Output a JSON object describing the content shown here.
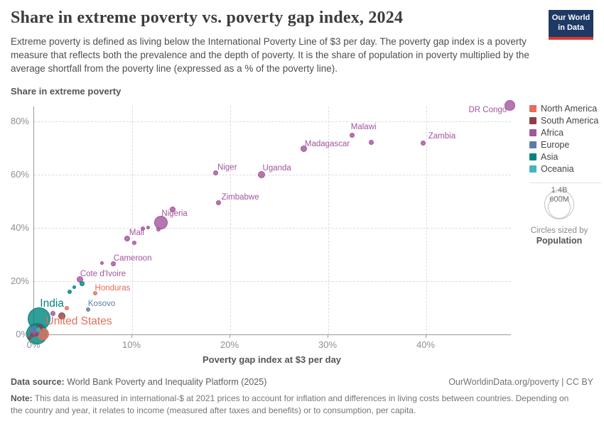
{
  "header": {
    "title": "Share in extreme poverty vs. poverty gap index, 2024",
    "subtitle": "Extreme poverty is defined as living below the International Poverty Line of $3 per day. The poverty gap index is a poverty measure that reflects both the prevalence and the depth of poverty. It is the share of population in poverty multiplied by the average shortfall from the poverty line (expressed as a % of the poverty line)."
  },
  "logo": {
    "line1": "Our World",
    "line2": "in Data",
    "bg_color": "#1d3964",
    "bar_color": "#e0362d"
  },
  "colors": {
    "north_america": "#e56e5a",
    "south_america": "#8f3e47",
    "africa": "#a2559c",
    "europe": "#5b7cab",
    "asia": "#00847e",
    "oceania": "#44b3c2"
  },
  "chart_data": {
    "type": "scatter",
    "title": "Share in extreme poverty vs. poverty gap index, 2024",
    "xlabel": "Poverty gap index at $3 per day",
    "ylabel": "Share in extreme poverty",
    "xlim": [
      0,
      48.6
    ],
    "ylim": [
      0,
      86
    ],
    "grid": true,
    "legend_position": "right",
    "sized_by": "Population",
    "x_ticks": [
      {
        "v": 0,
        "label": "0%"
      },
      {
        "v": 10,
        "label": "10%"
      },
      {
        "v": 20,
        "label": "20%"
      },
      {
        "v": 30,
        "label": "30%"
      },
      {
        "v": 40,
        "label": "40%"
      }
    ],
    "y_ticks": [
      {
        "v": 0,
        "label": "0%"
      },
      {
        "v": 20,
        "label": "20%"
      },
      {
        "v": 40,
        "label": "40%"
      },
      {
        "v": 60,
        "label": "60%"
      },
      {
        "v": 80,
        "label": "80%"
      }
    ],
    "series": [
      {
        "name": "North America",
        "key": "north_america",
        "points": [
          {
            "x": 6.2,
            "y": 15.5,
            "r": 3,
            "label": "Honduras"
          },
          {
            "x": 3.3,
            "y": 9.8,
            "r": 3
          },
          {
            "x": 0.9,
            "y": 0.2,
            "r": 8.5,
            "label": "United States"
          }
        ]
      },
      {
        "name": "South America",
        "key": "south_america",
        "points": [
          {
            "x": 2.8,
            "y": 7.0,
            "r": 5
          },
          {
            "x": 0.6,
            "y": 2.6,
            "r": 4
          },
          {
            "x": 0.2,
            "y": 0.0,
            "r": 3
          },
          {
            "x": -0.2,
            "y": -0.3,
            "r": 3
          },
          {
            "x": -0.5,
            "y": -1.5,
            "r": 2.5
          }
        ]
      },
      {
        "name": "Africa",
        "key": "africa",
        "points": [
          {
            "x": 48.5,
            "y": 85.9,
            "r": 7.5,
            "label": "DR Congo"
          },
          {
            "x": 32.4,
            "y": 74.7,
            "r": 3.5,
            "label": "Malawi"
          },
          {
            "x": 34.4,
            "y": 72.1,
            "r": 3.5
          },
          {
            "x": 39.7,
            "y": 72.0,
            "r": 3.5,
            "label": "Zambia"
          },
          {
            "x": 27.5,
            "y": 69.8,
            "r": 4.5,
            "label": "Madagascar"
          },
          {
            "x": 23.2,
            "y": 60.1,
            "r": 5,
            "label": "Uganda"
          },
          {
            "x": 18.5,
            "y": 60.6,
            "r": 3.5,
            "label": "Niger"
          },
          {
            "x": 18.8,
            "y": 49.4,
            "r": 3.5,
            "label": "Zimbabwe"
          },
          {
            "x": 14.1,
            "y": 46.9,
            "r": 4
          },
          {
            "x": 12.9,
            "y": 42.0,
            "r": 9.5,
            "label": "Nigeria"
          },
          {
            "x": 12.7,
            "y": 39.4,
            "r": 3
          },
          {
            "x": 11.1,
            "y": 39.7,
            "r": 3
          },
          {
            "x": 11.6,
            "y": 40.2,
            "r": 2.5
          },
          {
            "x": 10.2,
            "y": 34.5,
            "r": 3
          },
          {
            "x": 9.5,
            "y": 36.1,
            "r": 4,
            "label": "Mali"
          },
          {
            "x": 8.1,
            "y": 26.5,
            "r": 3.5,
            "label": "Cameroon"
          },
          {
            "x": 6.9,
            "y": 26.9,
            "r": 2.5
          },
          {
            "x": 4.7,
            "y": 20.7,
            "r": 4.5,
            "label": "Cote d'Ivoire"
          },
          {
            "x": 1.9,
            "y": 8.0,
            "r": 3.5
          },
          {
            "x": 0.0,
            "y": 0.3,
            "r": 2.5
          }
        ]
      },
      {
        "name": "Europe",
        "key": "europe",
        "points": [
          {
            "x": 5.5,
            "y": 9.4,
            "r": 3,
            "label": "Kosovo"
          },
          {
            "x": 0.05,
            "y": 1.2,
            "r": 7.5
          }
        ]
      },
      {
        "name": "Asia",
        "key": "asia",
        "points": [
          {
            "x": 4.9,
            "y": 19.2,
            "r": 3.5
          },
          {
            "x": 4.1,
            "y": 17.8,
            "r": 2.5
          },
          {
            "x": 3.6,
            "y": 16.0,
            "r": 3
          },
          {
            "x": 0.5,
            "y": 6.0,
            "r": 16,
            "label": "India"
          },
          {
            "x": 0.3,
            "y": 0.3,
            "r": 15
          }
        ]
      },
      {
        "name": "Oceania",
        "key": "oceania",
        "points": [
          {
            "x": 0.4,
            "y": 1.8,
            "r": 3
          }
        ]
      }
    ],
    "point_labels": [
      {
        "text": "DR Congo",
        "x": 48.2,
        "y": 84.2,
        "align": "right",
        "color": "africa"
      },
      {
        "text": "Malawi",
        "x": 33.6,
        "y": 78.0,
        "align": "center",
        "color": "africa"
      },
      {
        "text": "Zambia",
        "x": 40.2,
        "y": 74.4,
        "align": "left",
        "color": "africa"
      },
      {
        "text": "Madagascar",
        "x": 27.6,
        "y": 71.5,
        "align": "left",
        "color": "africa"
      },
      {
        "text": "Uganda",
        "x": 23.3,
        "y": 62.4,
        "align": "left",
        "color": "africa"
      },
      {
        "text": "Niger",
        "x": 18.7,
        "y": 62.7,
        "align": "left",
        "color": "africa"
      },
      {
        "text": "Zimbabwe",
        "x": 19.1,
        "y": 51.5,
        "align": "left",
        "color": "africa"
      },
      {
        "text": "Nigeria",
        "x": 13.0,
        "y": 45.3,
        "align": "left",
        "color": "africa"
      },
      {
        "text": "Mali",
        "x": 9.7,
        "y": 38.1,
        "align": "left",
        "color": "africa"
      },
      {
        "text": "Cameroon",
        "x": 8.1,
        "y": 28.5,
        "align": "left",
        "color": "africa"
      },
      {
        "text": "Cote d'Ivoire",
        "x": 4.7,
        "y": 22.7,
        "align": "left",
        "color": "africa"
      },
      {
        "text": "Honduras",
        "x": 6.2,
        "y": 17.3,
        "align": "left",
        "color": "north_america"
      },
      {
        "text": "Kosovo",
        "x": 5.5,
        "y": 11.5,
        "align": "left",
        "color": "europe"
      },
      {
        "text": "India",
        "x": 0.6,
        "y": 11.6,
        "align": "left",
        "color": "asia",
        "big": true
      },
      {
        "text": "United States",
        "x": 1.2,
        "y": 4.8,
        "align": "left",
        "color": "north_america",
        "big": true
      }
    ]
  },
  "size_legend": {
    "outer_label": "1.4B",
    "inner_label": "600M",
    "caption_line1": "Circles sized by",
    "caption_line2": "Population"
  },
  "footer": {
    "source_label": "Data source:",
    "source_text": "World Bank Poverty and Inequality Platform (2025)",
    "credit": "OurWorldinData.org/poverty | CC BY",
    "note_label": "Note:",
    "note_text": "This data is measured in international-$ at 2021 prices to account for inflation and differences in living costs between countries. Depending on the country and year, it relates to income (measured after taxes and benefits) or to consumption, per capita."
  }
}
